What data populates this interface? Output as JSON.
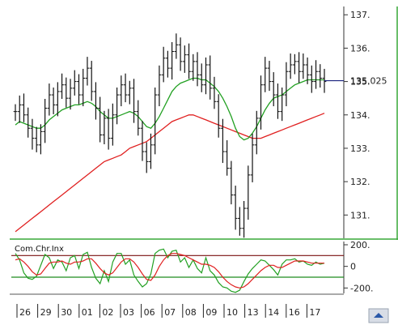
{
  "chart_data": [
    {
      "type": "ohlc",
      "ylim": [
        130.4,
        137.2
      ],
      "y_ticks": [
        "131.",
        "132.",
        "133.",
        "134.",
        "135.",
        "136.",
        "137."
      ],
      "last_price": "135.025",
      "x_tick_labels": [
        "26",
        "29",
        "30",
        "01",
        "02",
        "03",
        "06",
        "07",
        "08",
        "09",
        "10",
        "13",
        "14",
        "16",
        "17"
      ],
      "colors": {
        "bars": "#111111",
        "ma_fast": "#22a022",
        "ma_slow": "#e02020",
        "last_price_line": "#1a237e"
      },
      "close": [
        134.1,
        134.3,
        134.0,
        133.6,
        133.3,
        133.1,
        133.5,
        134.2,
        134.6,
        134.3,
        134.7,
        134.9,
        134.5,
        134.8,
        135.0,
        134.6,
        135.1,
        135.4,
        134.7,
        134.2,
        133.4,
        133.9,
        133.3,
        134.0,
        134.6,
        134.9,
        134.6,
        134.8,
        134.1,
        133.6,
        132.9,
        132.6,
        133.1,
        134.6,
        135.2,
        135.7,
        135.4,
        135.9,
        136.1,
        135.6,
        135.8,
        135.3,
        135.6,
        135.2,
        134.9,
        135.5,
        134.8,
        134.4,
        133.6,
        132.9,
        132.4,
        131.6,
        130.9,
        130.6,
        131.2,
        132.2,
        133.1,
        133.9,
        134.9,
        135.4,
        135.0,
        134.6,
        134.1,
        134.6,
        135.3,
        135.5,
        135.6,
        135.3,
        135.5,
        135.2,
        135.0,
        135.3,
        135.1,
        135.0
      ],
      "ma_fast": [
        133.7,
        133.8,
        133.75,
        133.7,
        133.65,
        133.6,
        133.6,
        133.7,
        133.85,
        133.95,
        134.05,
        134.15,
        134.2,
        134.25,
        134.3,
        134.3,
        134.35,
        134.4,
        134.35,
        134.25,
        134.1,
        134.0,
        133.9,
        133.9,
        133.95,
        134.0,
        134.05,
        134.1,
        134.05,
        133.95,
        133.8,
        133.65,
        133.6,
        133.75,
        133.95,
        134.2,
        134.45,
        134.7,
        134.85,
        134.95,
        135.0,
        135.05,
        135.1,
        135.1,
        135.05,
        135.05,
        134.95,
        134.85,
        134.7,
        134.5,
        134.25,
        133.95,
        133.6,
        133.35,
        133.25,
        133.3,
        133.45,
        133.65,
        133.9,
        134.15,
        134.35,
        134.5,
        134.55,
        134.6,
        134.7,
        134.8,
        134.9,
        134.95,
        135.0,
        135.05,
        135.05,
        135.05,
        135.05,
        135.05
      ],
      "ma_slow": [
        130.5,
        130.6,
        130.7,
        130.8,
        130.9,
        131.0,
        131.1,
        131.2,
        131.3,
        131.4,
        131.5,
        131.6,
        131.7,
        131.8,
        131.9,
        132.0,
        132.1,
        132.2,
        132.3,
        132.4,
        132.5,
        132.6,
        132.65,
        132.7,
        132.75,
        132.8,
        132.9,
        133.0,
        133.05,
        133.1,
        133.15,
        133.2,
        133.3,
        133.4,
        133.5,
        133.6,
        133.7,
        133.8,
        133.85,
        133.9,
        133.95,
        134.0,
        134.0,
        133.95,
        133.9,
        133.85,
        133.8,
        133.75,
        133.7,
        133.65,
        133.6,
        133.55,
        133.5,
        133.45,
        133.4,
        133.35,
        133.3,
        133.3,
        133.3,
        133.35,
        133.4,
        133.45,
        133.5,
        133.55,
        133.6,
        133.65,
        133.7,
        133.75,
        133.8,
        133.85,
        133.9,
        133.95,
        134.0,
        134.05
      ]
    },
    {
      "type": "line",
      "title": "Com.Chr.Inx",
      "ylim": [
        -250,
        230
      ],
      "y_ticks": [
        "200.",
        "0",
        "-200."
      ],
      "levels": [
        100,
        -100
      ],
      "colors": {
        "main": "#22a022",
        "signal": "#e02020",
        "level_high": "#7a1010",
        "level_low": "#1e8c1e"
      },
      "main": [
        120,
        60,
        -60,
        -110,
        -120,
        -90,
        10,
        110,
        80,
        -20,
        60,
        40,
        -40,
        80,
        100,
        -20,
        110,
        130,
        -10,
        -110,
        -160,
        -40,
        -140,
        40,
        120,
        120,
        20,
        60,
        -80,
        -140,
        -190,
        -160,
        -70,
        120,
        150,
        160,
        80,
        140,
        150,
        40,
        80,
        -10,
        60,
        -20,
        -60,
        80,
        -40,
        -80,
        -150,
        -190,
        -200,
        -230,
        -240,
        -220,
        -140,
        -70,
        -20,
        20,
        60,
        50,
        10,
        -30,
        -80,
        20,
        60,
        60,
        70,
        40,
        50,
        20,
        10,
        40,
        20,
        30
      ],
      "signal": [
        60,
        70,
        40,
        0,
        -50,
        -80,
        -70,
        -20,
        30,
        40,
        40,
        50,
        30,
        20,
        40,
        40,
        50,
        70,
        70,
        30,
        -20,
        -60,
        -80,
        -60,
        -10,
        40,
        70,
        70,
        40,
        -10,
        -70,
        -120,
        -130,
        -80,
        0,
        60,
        100,
        120,
        120,
        110,
        100,
        80,
        60,
        40,
        20,
        20,
        10,
        -10,
        -50,
        -100,
        -140,
        -170,
        -190,
        -200,
        -190,
        -160,
        -120,
        -80,
        -40,
        -10,
        10,
        10,
        -10,
        -10,
        10,
        30,
        50,
        50,
        50,
        40,
        30,
        30,
        30,
        30
      ]
    }
  ]
}
